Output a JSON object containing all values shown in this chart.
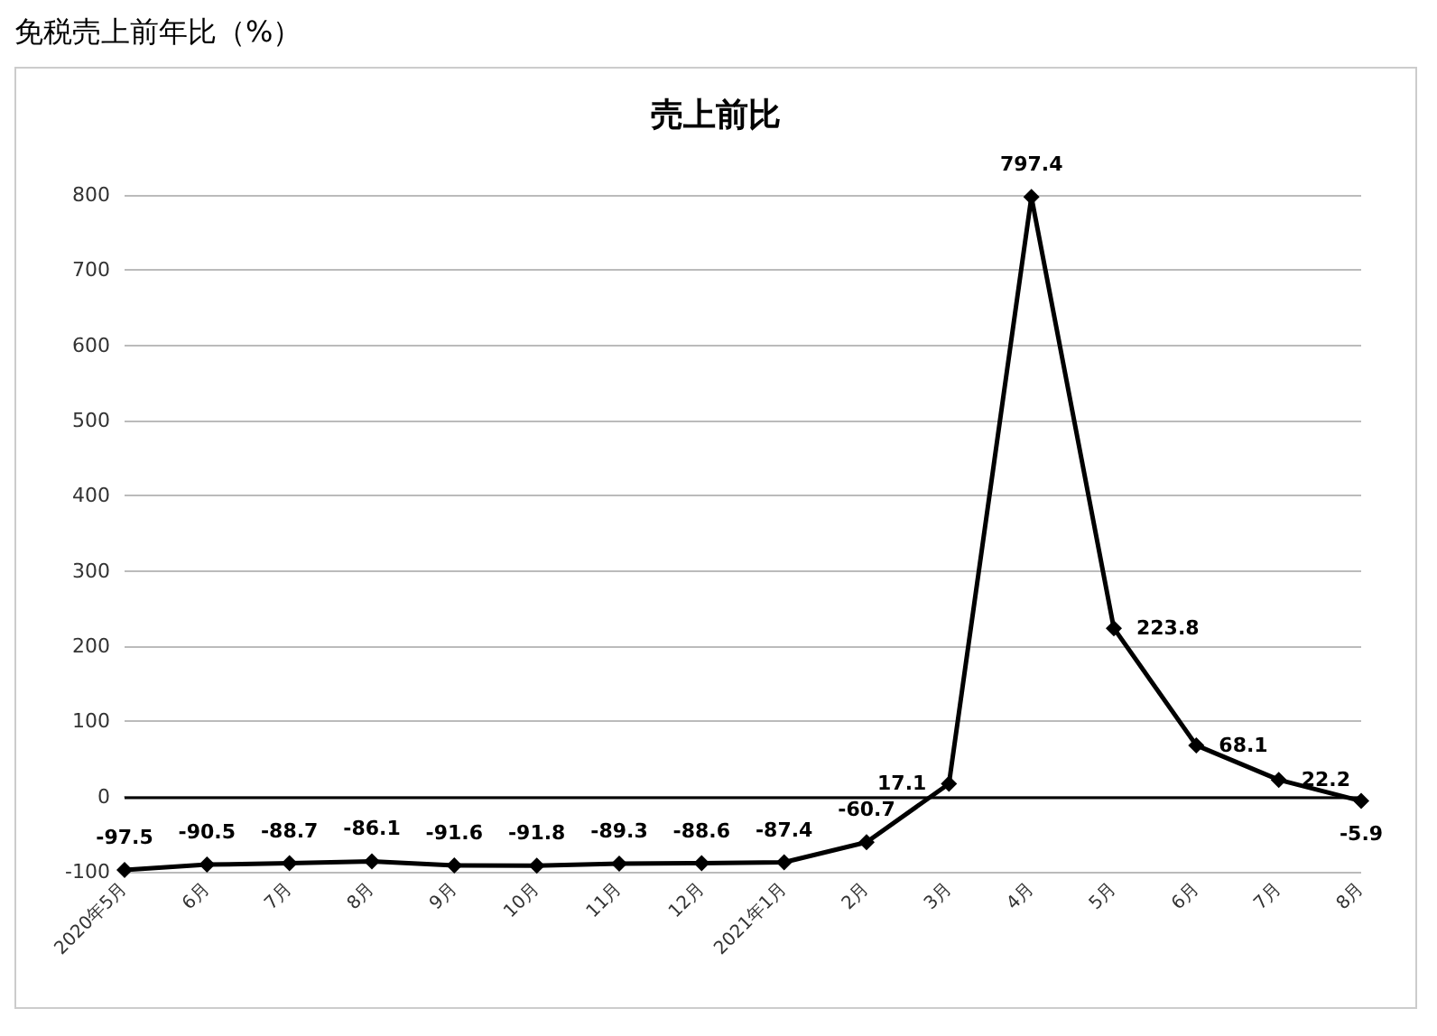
{
  "chart_data": {
    "type": "line",
    "title": "売上前比",
    "subtitle": "免税売上前年比（%）",
    "categories": [
      "2020年5月",
      "6月",
      "7月",
      "8月",
      "9月",
      "10月",
      "11月",
      "12月",
      "2021年1月",
      "2月",
      "3月",
      "4月",
      "5月",
      "6月",
      "7月",
      "8月"
    ],
    "series": [
      {
        "color": "#000000",
        "values": [
          -97.5,
          -90.5,
          -88.7,
          -86.1,
          -91.6,
          -91.8,
          -89.3,
          -88.6,
          -87.4,
          -60.7,
          17.1,
          797.4,
          223.8,
          68.1,
          22.2,
          -5.9
        ]
      }
    ],
    "ylim": [
      -100,
      800
    ],
    "yticks": [
      -100,
      0,
      100,
      200,
      300,
      400,
      500,
      600,
      700,
      800
    ],
    "ref_lines": [
      {
        "axis": "y",
        "value": 0,
        "color": "#000000"
      }
    ],
    "grid": "y",
    "marker": "diamond",
    "line_style": "solid",
    "data_labels": true
  }
}
